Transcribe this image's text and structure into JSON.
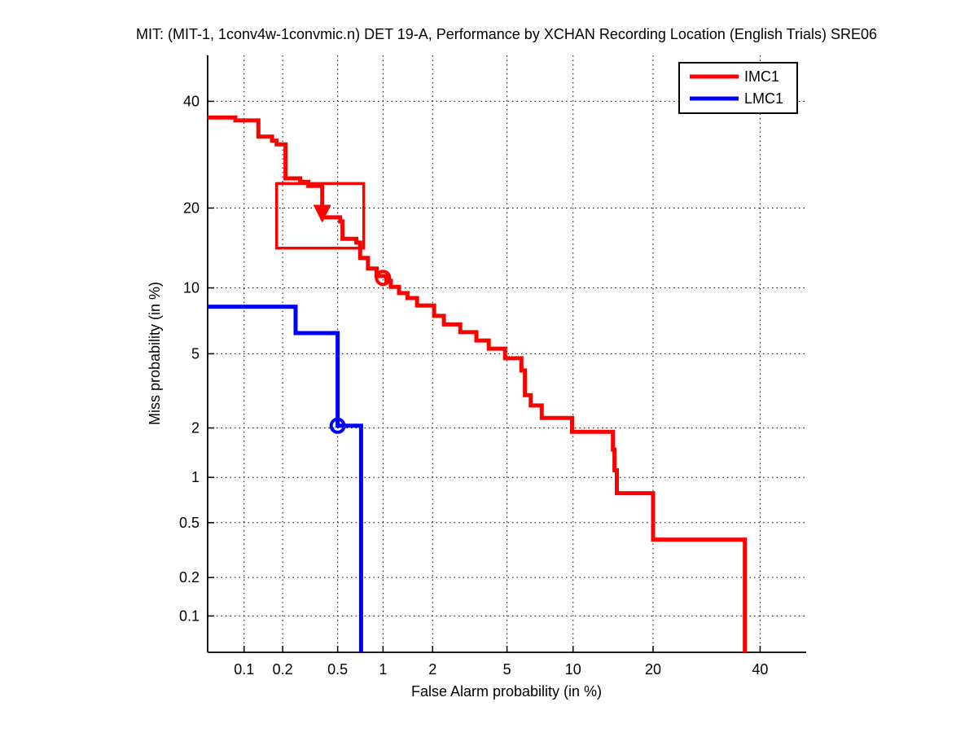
{
  "title": "MIT: (MIT-1, 1conv4w-1convmic.n) DET 19-A,  Performance by XCHAN Recording Location (English Trials) SRE06",
  "chart_data": {
    "type": "line",
    "subtype": "DET-curve step plot, probit scale on both axes",
    "xlabel": "False Alarm probability (in %)",
    "ylabel": "Miss probability (in %)",
    "axis_range_pct": [
      0.05,
      50
    ],
    "grid": "dotted",
    "x_ticks": {
      "values": [
        0.1,
        0.2,
        0.5,
        1,
        2,
        5,
        10,
        20,
        40
      ],
      "labels": [
        "0.1",
        "0.2",
        "0.5",
        "1",
        "2",
        "5",
        "10",
        "20",
        "40"
      ]
    },
    "y_ticks": {
      "values": [
        0.1,
        0.2,
        0.5,
        1,
        2,
        5,
        10,
        20,
        40
      ],
      "labels": [
        "0.1",
        "0.2",
        "0.5",
        "1",
        "2",
        "5",
        "10",
        "20",
        "40"
      ]
    },
    "legend": {
      "position": "top-right",
      "entries": [
        {
          "label": "IMC1",
          "color": "#ff0000"
        },
        {
          "label": "LMC1",
          "color": "#0000ff"
        }
      ]
    },
    "series": [
      {
        "name": "IMC1",
        "color": "#ff0000",
        "points_fa_miss_pct": [
          [
            0.05,
            36.6
          ],
          [
            0.085,
            36.6
          ],
          [
            0.085,
            36.0
          ],
          [
            0.13,
            36.0
          ],
          [
            0.13,
            32.7
          ],
          [
            0.166,
            32.7
          ],
          [
            0.166,
            31.9
          ],
          [
            0.18,
            31.9
          ],
          [
            0.18,
            31.2
          ],
          [
            0.21,
            31.2
          ],
          [
            0.21,
            24.9
          ],
          [
            0.27,
            24.9
          ],
          [
            0.27,
            24.3
          ],
          [
            0.31,
            24.3
          ],
          [
            0.31,
            23.6
          ],
          [
            0.39,
            23.6
          ],
          [
            0.39,
            18.6
          ],
          [
            0.52,
            18.6
          ],
          [
            0.52,
            18.0
          ],
          [
            0.54,
            18.0
          ],
          [
            0.54,
            15.6
          ],
          [
            0.67,
            15.6
          ],
          [
            0.67,
            15.1
          ],
          [
            0.71,
            15.1
          ],
          [
            0.71,
            13.2
          ],
          [
            0.8,
            13.2
          ],
          [
            0.8,
            12.0
          ],
          [
            0.91,
            12.0
          ],
          [
            0.91,
            11.2
          ],
          [
            1.05,
            11.2
          ],
          [
            1.05,
            10.7
          ],
          [
            1.12,
            10.7
          ],
          [
            1.12,
            10.1
          ],
          [
            1.26,
            10.1
          ],
          [
            1.26,
            9.5
          ],
          [
            1.42,
            9.5
          ],
          [
            1.42,
            9.05
          ],
          [
            1.62,
            9.05
          ],
          [
            1.62,
            8.4
          ],
          [
            2.04,
            8.4
          ],
          [
            2.04,
            7.55
          ],
          [
            2.32,
            7.55
          ],
          [
            2.32,
            6.9
          ],
          [
            2.86,
            6.9
          ],
          [
            2.86,
            6.35
          ],
          [
            3.49,
            6.35
          ],
          [
            3.49,
            5.8
          ],
          [
            4.05,
            5.8
          ],
          [
            4.05,
            5.3
          ],
          [
            4.89,
            5.3
          ],
          [
            4.89,
            4.75
          ],
          [
            5.87,
            4.75
          ],
          [
            5.87,
            4.12
          ],
          [
            6.1,
            4.12
          ],
          [
            6.1,
            3.05
          ],
          [
            6.5,
            3.05
          ],
          [
            6.5,
            2.68
          ],
          [
            7.3,
            2.68
          ],
          [
            7.3,
            2.28
          ],
          [
            9.9,
            2.28
          ],
          [
            9.9,
            1.9
          ],
          [
            14.4,
            1.9
          ],
          [
            14.4,
            1.49
          ],
          [
            14.6,
            1.49
          ],
          [
            14.6,
            1.11
          ],
          [
            14.9,
            1.11
          ],
          [
            14.9,
            0.79
          ],
          [
            20.0,
            0.79
          ],
          [
            20.0,
            0.38
          ],
          [
            36.8,
            0.38
          ],
          [
            36.8,
            0.05
          ]
        ]
      },
      {
        "name": "LMC1",
        "color": "#0000ff",
        "points_fa_miss_pct": [
          [
            0.05,
            8.3
          ],
          [
            0.25,
            8.3
          ],
          [
            0.25,
            6.29
          ],
          [
            0.5,
            6.29
          ],
          [
            0.5,
            2.06
          ],
          [
            0.72,
            2.06
          ],
          [
            0.72,
            0.05
          ]
        ]
      }
    ],
    "annotations": {
      "dcf_box": {
        "series": "IMC1",
        "fa_range_pct": [
          0.18,
          0.75
        ],
        "miss_range_pct": [
          14.4,
          24.0
        ],
        "color": "#ff0000"
      },
      "markers": [
        {
          "shape": "arrow-down",
          "series": "IMC1",
          "fa_pct": 0.39,
          "miss_pct": 19.0,
          "color": "#ff0000"
        },
        {
          "shape": "circle",
          "series": "IMC1",
          "fa_pct": 1.0,
          "miss_pct": 11.0,
          "color": "#ff0000"
        },
        {
          "shape": "circle",
          "series": "LMC1",
          "fa_pct": 0.5,
          "miss_pct": 2.06,
          "color": "#0000ff"
        }
      ]
    }
  }
}
